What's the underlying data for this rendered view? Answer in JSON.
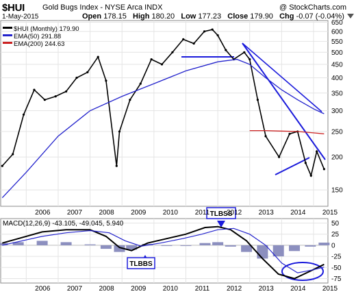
{
  "header": {
    "ticker": "$HUI",
    "index_name": "Gold Bugs Index - NYSE Arca INDX",
    "date": "1-May-2015",
    "ohlc": [
      {
        "label": "Open",
        "value": "178.15"
      },
      {
        "label": "High",
        "value": "180.20"
      },
      {
        "label": "Low",
        "value": "177.23"
      },
      {
        "label": "Close",
        "value": "179.90"
      },
      {
        "label": "Chg",
        "value": "-0.07 (-0.04%)"
      }
    ],
    "credit": "@ StockCharts.com"
  },
  "chart_data": [
    {
      "type": "line",
      "name": "price",
      "legend": [
        {
          "label": "$HUI (Monthly) 179.90",
          "color": "#000000"
        },
        {
          "label": "EMA(50) 291.88",
          "color": "#2222cc"
        },
        {
          "label": "EMA(200) 244.63",
          "color": "#cc2222"
        }
      ],
      "scale": "log",
      "ylim": [
        130,
        660
      ],
      "y_ticks": [
        150,
        200,
        250,
        300,
        350,
        400,
        450,
        500,
        550,
        600,
        650
      ],
      "x_ticks": [
        "2006",
        "2007",
        "2008",
        "2009",
        "2010",
        "2011",
        "2012",
        "2013",
        "2014",
        "2015"
      ],
      "x_range": [
        2005.2,
        2015.45
      ],
      "series": [
        {
          "name": "$HUI (Monthly)",
          "color": "#000000",
          "x": [
            2005.25,
            2005.58,
            2005.92,
            2006.25,
            2006.58,
            2006.92,
            2007.25,
            2007.58,
            2007.92,
            2008.25,
            2008.5,
            2008.83,
            2008.92,
            2009.25,
            2009.58,
            2009.92,
            2010.25,
            2010.58,
            2010.92,
            2011.25,
            2011.58,
            2011.83,
            2012.0,
            2012.25,
            2012.5,
            2012.83,
            2013.0,
            2013.25,
            2013.5,
            2013.92,
            2014.25,
            2014.5,
            2014.75,
            2014.92,
            2015.1,
            2015.33
          ],
          "values": [
            185,
            205,
            290,
            360,
            330,
            340,
            355,
            400,
            420,
            480,
            390,
            185,
            250,
            330,
            380,
            470,
            450,
            500,
            560,
            540,
            600,
            610,
            580,
            510,
            470,
            500,
            470,
            330,
            240,
            200,
            245,
            250,
            190,
            170,
            210,
            180
          ]
        },
        {
          "name": "EMA(50)",
          "color": "#2222cc",
          "x": [
            2005.25,
            2006.0,
            2007.0,
            2008.0,
            2009.0,
            2010.0,
            2011.0,
            2012.0,
            2012.6,
            2013.0,
            2013.5,
            2014.0,
            2014.5,
            2015.0,
            2015.33
          ],
          "values": [
            140,
            175,
            240,
            300,
            340,
            380,
            425,
            460,
            470,
            450,
            400,
            360,
            330,
            305,
            292
          ]
        },
        {
          "name": "EMA(200)",
          "color": "#cc2222",
          "x": [
            2013.0,
            2013.5,
            2014.0,
            2014.5,
            2015.0,
            2015.33
          ],
          "values": [
            252,
            252,
            251,
            250,
            247,
            245
          ]
        }
      ]
    },
    {
      "type": "line",
      "name": "macd",
      "legend_text": "MACD(12,26,9) -43.105, -49.045, 5.940",
      "ylim": [
        -85,
        60
      ],
      "y_ticks": [
        50,
        25,
        0,
        -25,
        -50,
        -75
      ],
      "series": [
        {
          "name": "MACD",
          "color": "#000000",
          "x": [
            2005.25,
            2005.75,
            2006.5,
            2007.25,
            2008.0,
            2008.5,
            2008.92,
            2009.3,
            2009.8,
            2010.4,
            2011.0,
            2011.6,
            2012.0,
            2012.4,
            2012.9,
            2013.4,
            2013.9,
            2014.4,
            2014.9,
            2015.33
          ],
          "values": [
            5,
            15,
            30,
            35,
            35,
            20,
            -5,
            -12,
            5,
            15,
            25,
            40,
            42,
            35,
            10,
            -30,
            -65,
            -75,
            -58,
            -43
          ]
        },
        {
          "name": "Signal",
          "color": "#2222cc",
          "x": [
            2005.25,
            2005.75,
            2006.5,
            2007.25,
            2008.0,
            2008.6,
            2009.1,
            2009.6,
            2010.2,
            2010.9,
            2011.5,
            2012.0,
            2012.5,
            2013.0,
            2013.5,
            2014.0,
            2014.5,
            2015.0,
            2015.33
          ],
          "values": [
            0,
            8,
            20,
            28,
            33,
            28,
            10,
            -2,
            5,
            15,
            25,
            35,
            38,
            25,
            0,
            -40,
            -62,
            -55,
            -49
          ]
        }
      ],
      "histogram": {
        "x": [
          2005.25,
          2005.75,
          2006.5,
          2007.25,
          2008.0,
          2008.5,
          2008.92,
          2009.3,
          2009.8,
          2010.4,
          2011.0,
          2011.6,
          2012.0,
          2012.4,
          2012.9,
          2013.4,
          2013.9,
          2014.4,
          2014.9,
          2015.33
        ],
        "values": [
          5,
          7,
          10,
          7,
          2,
          -8,
          -15,
          -10,
          3,
          0,
          0,
          5,
          7,
          -3,
          -15,
          -30,
          -25,
          -13,
          -3,
          6
        ]
      }
    }
  ],
  "x_axis_labels": [
    "2006",
    "2007",
    "2008",
    "2009",
    "2010",
    "2011",
    "2012",
    "2013",
    "2014",
    "2015"
  ],
  "annotations": {
    "tlbbs_label": "TLBBS",
    "tlbss_label": "TLBSS"
  }
}
